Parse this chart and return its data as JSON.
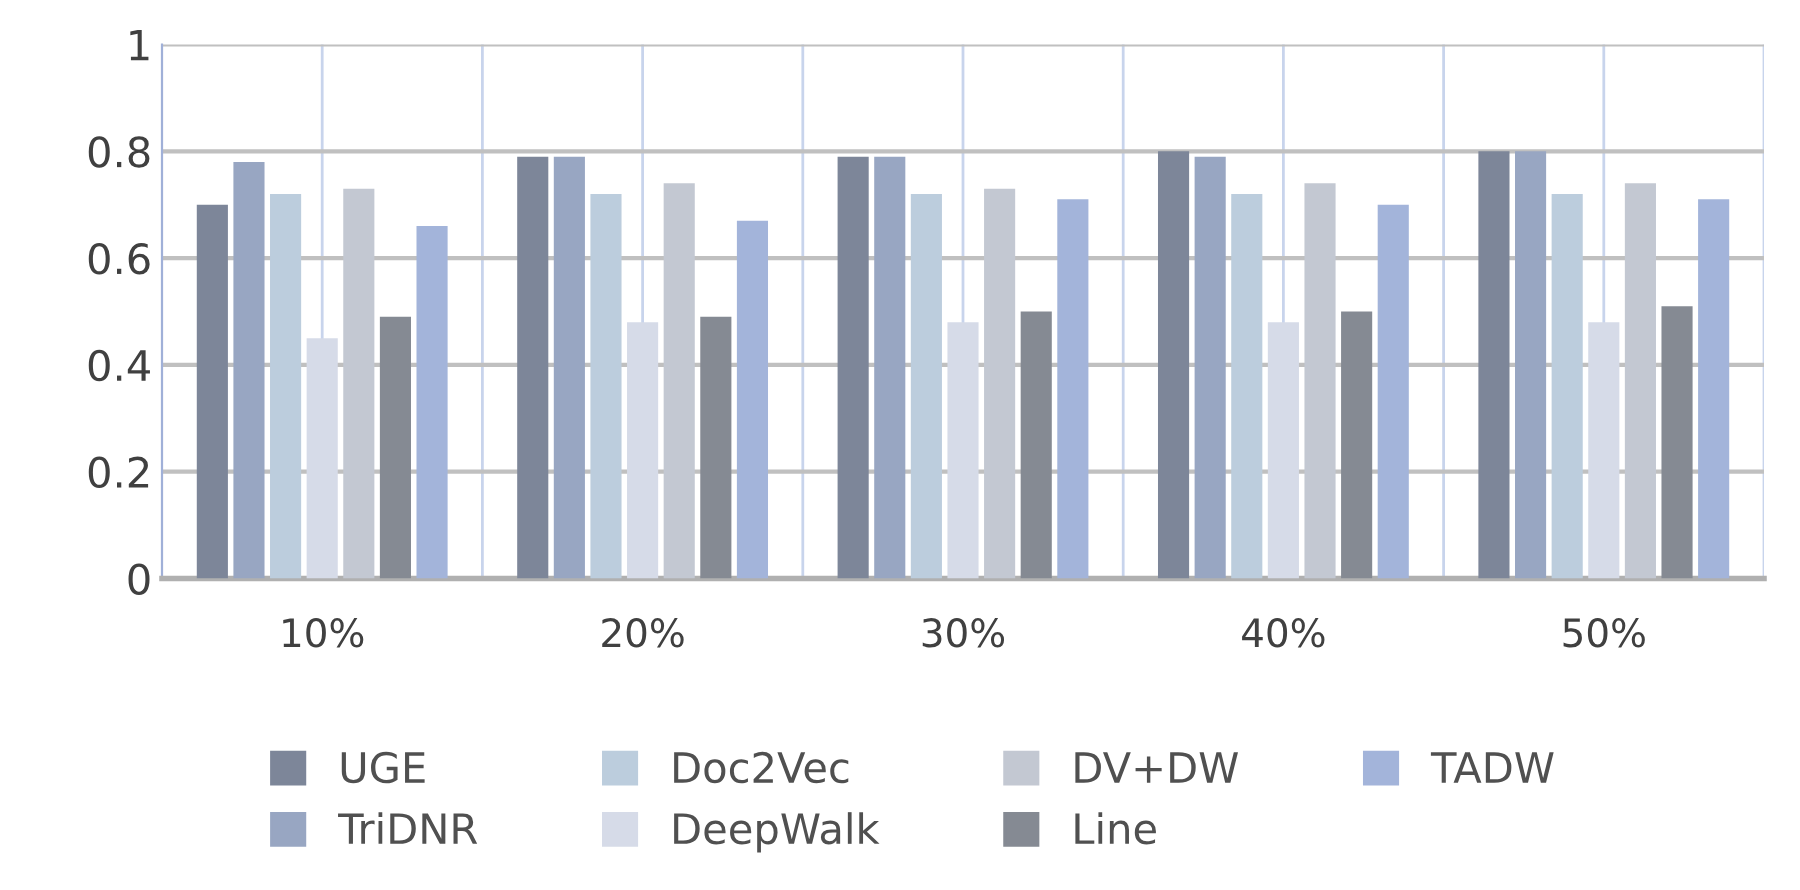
{
  "chart_data": {
    "type": "bar",
    "categories": [
      "10%",
      "20%",
      "30%",
      "40%",
      "50%"
    ],
    "series": [
      {
        "name": "UGE",
        "color": "#7d8699",
        "values": [
          0.7,
          0.79,
          0.79,
          0.8,
          0.8
        ]
      },
      {
        "name": "TriDNR",
        "color": "#98a6c2",
        "values": [
          0.78,
          0.79,
          0.79,
          0.79,
          0.8
        ]
      },
      {
        "name": "Doc2Vec",
        "color": "#bccddd",
        "values": [
          0.72,
          0.72,
          0.72,
          0.72,
          0.72
        ]
      },
      {
        "name": "DeepWalk",
        "color": "#d6dbe8",
        "values": [
          0.45,
          0.48,
          0.48,
          0.48,
          0.48
        ]
      },
      {
        "name": "DV+DW",
        "color": "#c3c8d2",
        "values": [
          0.73,
          0.74,
          0.73,
          0.74,
          0.74
        ]
      },
      {
        "name": "Line",
        "color": "#858a93",
        "values": [
          0.49,
          0.49,
          0.5,
          0.5,
          0.51
        ]
      },
      {
        "name": "TADW",
        "color": "#a3b4da",
        "values": [
          0.66,
          0.67,
          0.71,
          0.7,
          0.71
        ]
      }
    ],
    "ylim": [
      0,
      1
    ],
    "yticks": [
      0,
      0.2,
      0.4,
      0.6,
      0.8,
      1
    ],
    "grid": true,
    "legend": "bottom"
  }
}
